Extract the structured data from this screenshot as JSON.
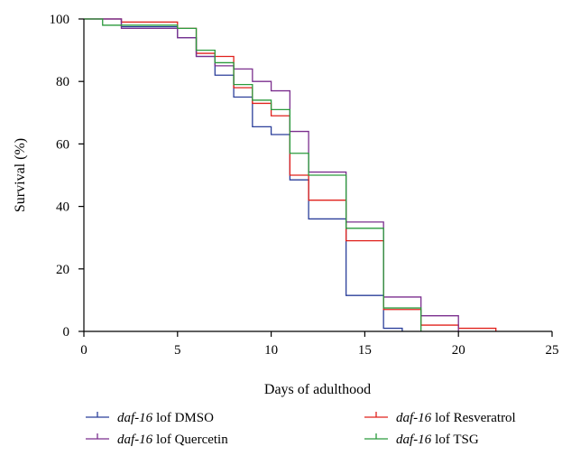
{
  "chart_data": {
    "type": "line",
    "subtype": "kaplan-meier step",
    "xlabel": "Days of adulthood",
    "ylabel": "Survival (%)",
    "xlim": [
      0,
      25
    ],
    "ylim": [
      0,
      100
    ],
    "xticks": [
      0,
      5,
      10,
      15,
      20,
      25
    ],
    "yticks": [
      0,
      20,
      40,
      60,
      80,
      100
    ],
    "grid": false,
    "legend_placement": "bottom",
    "series": [
      {
        "strain": "daf-16",
        "name": "lof DMSO",
        "color": "#2b3f9a",
        "x": [
          0,
          2,
          5,
          6,
          7,
          8,
          9,
          10,
          11,
          12,
          14,
          16,
          17
        ],
        "y": [
          100,
          97.5,
          94,
          88,
          82,
          75,
          65.5,
          63,
          48.5,
          36,
          11.5,
          1,
          0
        ],
        "censor": []
      },
      {
        "strain": "daf-16",
        "name": "lof Resveratrol",
        "color": "#e0201b",
        "x": [
          0,
          2,
          5,
          6,
          7,
          8,
          9,
          10,
          11,
          12,
          14,
          16,
          18,
          20,
          22
        ],
        "y": [
          100,
          99,
          97,
          89,
          88,
          78,
          73,
          69,
          50,
          42,
          29,
          7,
          2,
          1,
          0
        ],
        "censor": []
      },
      {
        "strain": "daf-16",
        "name": "lof Quercetin",
        "color": "#7b2f8e",
        "x": [
          0,
          2,
          5,
          6,
          7,
          8,
          9,
          10,
          11,
          12,
          14,
          16,
          18,
          20
        ],
        "y": [
          100,
          97,
          94,
          88,
          85,
          84,
          80,
          77,
          64,
          51,
          35,
          11,
          5,
          0
        ],
        "censor": []
      },
      {
        "strain": "daf-16",
        "name": "lof TSG",
        "color": "#2a9a3c",
        "x": [
          0,
          1,
          5,
          6,
          7,
          8,
          9,
          10,
          11,
          12,
          14,
          16,
          18
        ],
        "y": [
          100,
          98,
          97,
          90,
          86,
          79,
          74,
          71,
          57,
          50,
          33,
          7.5,
          0
        ],
        "censor": []
      }
    ],
    "legend_order": [
      "lof DMSO",
      "lof Resveratrol",
      "lof Quercetin",
      "lof TSG"
    ]
  }
}
